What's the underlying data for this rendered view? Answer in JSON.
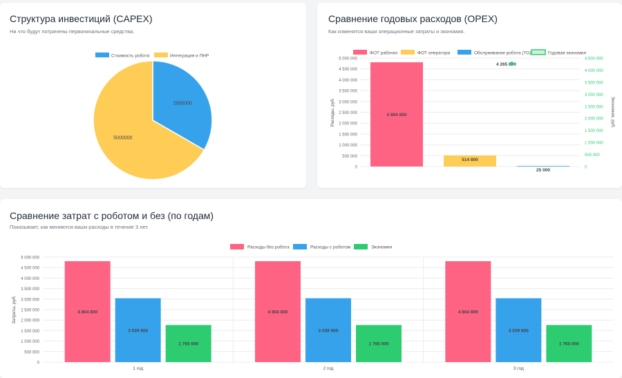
{
  "capex": {
    "title": "Структура инвестиций (CAPEX)",
    "subtitle": "На что будут потрачены первоначальные средства."
  },
  "opex": {
    "title": "Сравнение годовых расходов (OPEX)",
    "subtitle": "Как изменятся ваши операционные затраты и экономия."
  },
  "years": {
    "title": "Сравнение затрат с роботом и без (по годам)",
    "subtitle": "Показывает, как меняются ваши расходы в течение 3 лет."
  },
  "chart_data": [
    {
      "type": "pie",
      "legend_position": "top",
      "labels": [
        "Стоимость робота",
        "Интеграция и ПНР"
      ],
      "values": [
        2500000,
        5000000
      ],
      "value_labels": [
        "2500000",
        "5000000"
      ],
      "colors": [
        "#36a2eb",
        "#ffcd56"
      ]
    },
    {
      "type": "bar",
      "legend_position": "top",
      "series": [
        {
          "name": "ФОТ рабочих",
          "values": [
            4804800
          ],
          "label": "4 804 800",
          "color": "#ff6384"
        },
        {
          "name": "ФОТ оператора",
          "values": [
            514800
          ],
          "label": "514 800",
          "color": "#ffcd56"
        },
        {
          "name": "Обслуживание робота (ТО)",
          "values": [
            25000
          ],
          "label": "25 000",
          "color": "#36a2eb"
        },
        {
          "name": "Годовая экономия",
          "values": [
            4265000
          ],
          "label": "4 265 000",
          "color": "#2ecc71",
          "axis": "right",
          "style": "point"
        }
      ],
      "ylabel": "Расходы, руб.",
      "y2label": "Экономия, руб.",
      "ylim": [
        0,
        5000000
      ],
      "y2lim": [
        0,
        4500000
      ],
      "yticks": [
        "5 000 000",
        "4 500 000",
        "4 000 000",
        "3 500 000",
        "3 000 000",
        "2 500 000",
        "2 000 000",
        "1 500 000",
        "1 000 000",
        "500 000",
        "0"
      ],
      "y2ticks": [
        "4 500 000",
        "4 000 000",
        "3 500 000",
        "3 000 000",
        "2 500 000",
        "2 000 000",
        "1 500 000",
        "1 000 000",
        "500 000",
        "0"
      ],
      "grid": true
    },
    {
      "type": "bar",
      "legend_position": "top",
      "categories": [
        "1 год",
        "2 год",
        "3 год"
      ],
      "series": [
        {
          "name": "Расходы без робота",
          "values": [
            4804800,
            4804800,
            4804800
          ],
          "labels": [
            "4 804 800",
            "4 804 800",
            "4 804 800"
          ],
          "color": "#ff6384"
        },
        {
          "name": "Расходы с роботом",
          "values": [
            3039800,
            3039800,
            3039800
          ],
          "labels": [
            "3 039 800",
            "3 039 800",
            "3 039 800"
          ],
          "color": "#36a2eb"
        },
        {
          "name": "Экономия",
          "values": [
            1765000,
            1765000,
            1765000
          ],
          "labels": [
            "1 765 000",
            "1 765 000",
            "1 765 000"
          ],
          "color": "#2ecc71"
        }
      ],
      "ylabel": "Затраты, руб.",
      "ylim": [
        0,
        5000000
      ],
      "yticks": [
        "5 000 000",
        "4 500 000",
        "4 000 000",
        "3 500 000",
        "3 000 000",
        "2 500 000",
        "2 000 000",
        "1 500 000",
        "1 000 000",
        "500 000",
        "0"
      ],
      "grid": true
    }
  ]
}
